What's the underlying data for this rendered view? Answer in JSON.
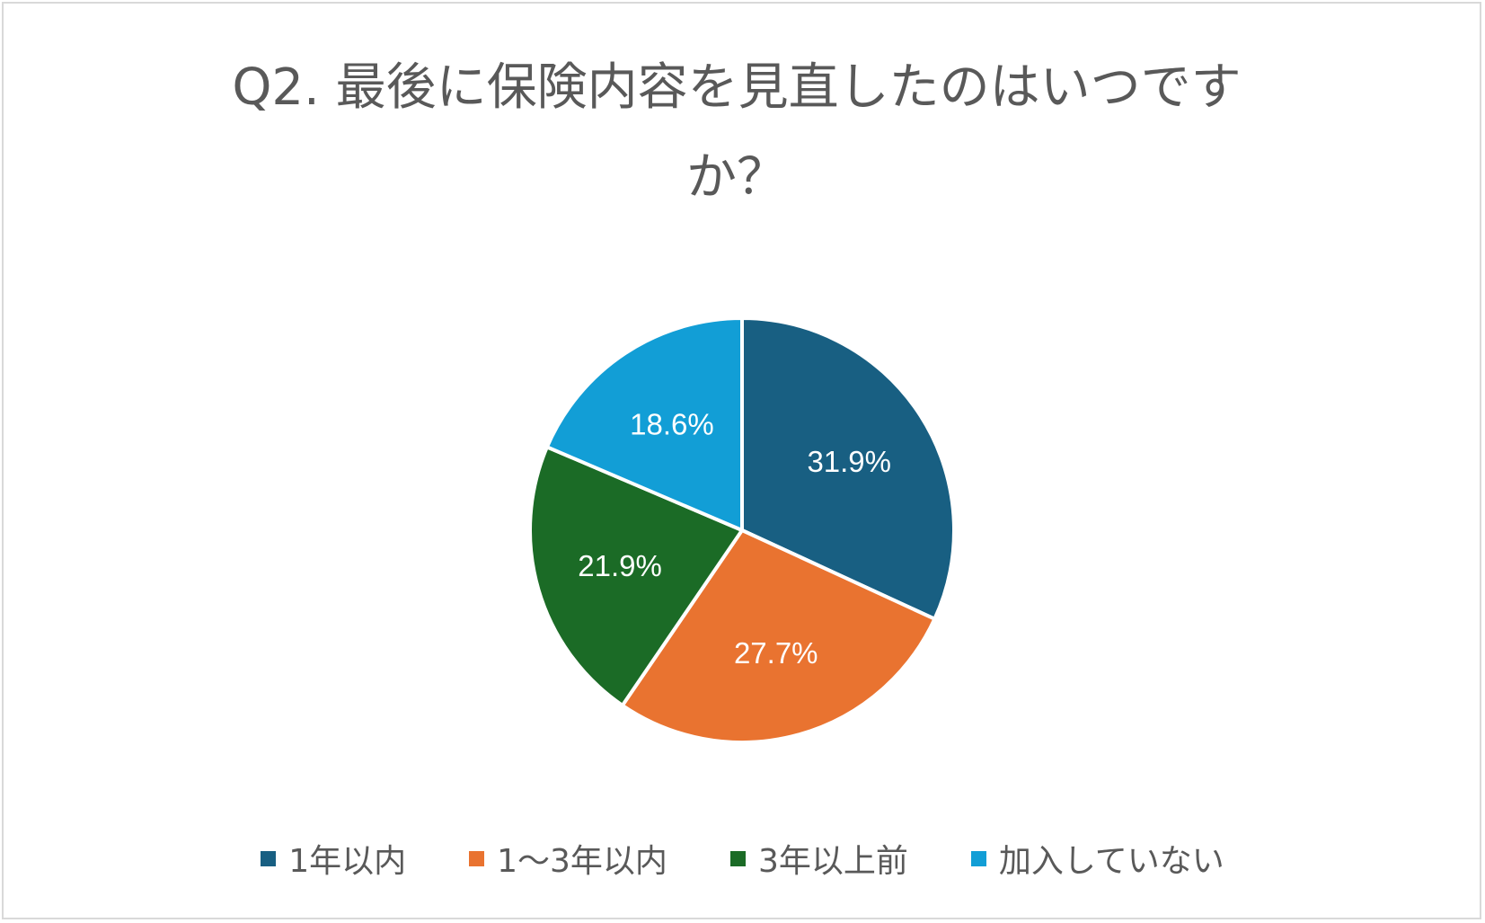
{
  "chart_data": {
    "type": "pie",
    "title": "Q2. 最後に保険内容を見直したのはいつですか？",
    "title_line1": "Q2. 最後に保険内容を見直したのはいつです",
    "title_line2": "か？",
    "categories": [
      "1年以内",
      "1～3年以内",
      "3年以上前",
      "加入していない"
    ],
    "values": [
      31.9,
      27.7,
      21.9,
      18.6
    ],
    "labels": [
      "31.9%",
      "27.7%",
      "21.9%",
      "18.6%"
    ],
    "colors": [
      "#185f82",
      "#e97330",
      "#1b6b26",
      "#129ed6"
    ],
    "legend_position": "bottom",
    "start_angle": "12 o'clock, clockwise"
  }
}
